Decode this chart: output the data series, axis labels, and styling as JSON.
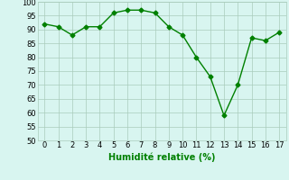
{
  "x": [
    0,
    1,
    2,
    3,
    4,
    5,
    6,
    7,
    8,
    9,
    10,
    11,
    12,
    13,
    14,
    15,
    16,
    17
  ],
  "y": [
    92,
    91,
    88,
    91,
    91,
    96,
    97,
    97,
    96,
    91,
    88,
    80,
    73,
    59,
    70,
    87,
    86,
    89
  ],
  "xlabel": "Humidité relative (%)",
  "ylim": [
    50,
    100
  ],
  "yticks": [
    50,
    55,
    60,
    65,
    70,
    75,
    80,
    85,
    90,
    95,
    100
  ],
  "xticks": [
    0,
    1,
    2,
    3,
    4,
    5,
    6,
    7,
    8,
    9,
    10,
    11,
    12,
    13,
    14,
    15,
    16,
    17
  ],
  "line_color": "#008000",
  "marker": "D",
  "marker_size": 2.5,
  "background_color": "#d8f5f0",
  "grid_color": "#aaccbb",
  "xlabel_color": "#008000",
  "xlabel_fontsize": 7,
  "tick_fontsize": 6,
  "line_width": 1.0
}
